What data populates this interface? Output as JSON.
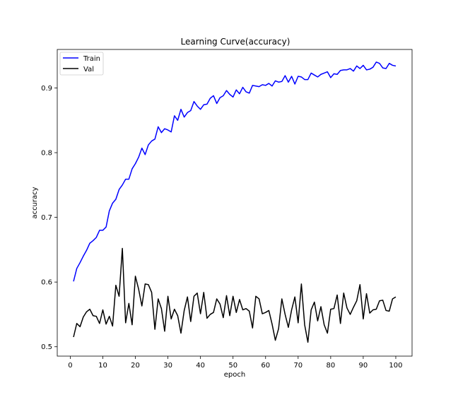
{
  "chart_data": {
    "type": "line",
    "title": "Learning Curve(accuracy)",
    "xlabel": "epoch",
    "ylabel": "accuracy",
    "xlim": [
      -4,
      105
    ],
    "ylim": [
      0.4855,
      0.9595
    ],
    "xticks": [
      0,
      10,
      20,
      30,
      40,
      50,
      60,
      70,
      80,
      90,
      100
    ],
    "yticks": [
      0.5,
      0.6,
      0.7,
      0.8,
      0.9
    ],
    "ytick_labels": [
      "0.5",
      "0.6",
      "0.7",
      "0.8",
      "0.9"
    ],
    "grid": false,
    "legend_position": "top-left",
    "series": [
      {
        "name": "Train",
        "color": "#0000ff",
        "x": [
          1,
          2,
          3,
          4,
          5,
          6,
          7,
          8,
          9,
          10,
          11,
          12,
          13,
          14,
          15,
          16,
          17,
          18,
          19,
          20,
          21,
          22,
          23,
          24,
          25,
          26,
          27,
          28,
          29,
          30,
          31,
          32,
          33,
          34,
          35,
          36,
          37,
          38,
          39,
          40,
          41,
          42,
          43,
          44,
          45,
          46,
          47,
          48,
          49,
          50,
          51,
          52,
          53,
          54,
          55,
          56,
          57,
          58,
          59,
          60,
          61,
          62,
          63,
          64,
          65,
          66,
          67,
          68,
          69,
          70,
          71,
          72,
          73,
          74,
          75,
          76,
          77,
          78,
          79,
          80,
          81,
          82,
          83,
          84,
          85,
          86,
          87,
          88,
          89,
          90,
          91,
          92,
          93,
          94,
          95,
          96,
          97,
          98,
          99,
          100
        ],
        "values": [
          0.601,
          0.621,
          0.63,
          0.64,
          0.649,
          0.66,
          0.664,
          0.669,
          0.68,
          0.68,
          0.685,
          0.71,
          0.722,
          0.728,
          0.743,
          0.75,
          0.759,
          0.759,
          0.775,
          0.783,
          0.793,
          0.807,
          0.797,
          0.812,
          0.818,
          0.821,
          0.84,
          0.831,
          0.837,
          0.835,
          0.832,
          0.857,
          0.85,
          0.867,
          0.855,
          0.862,
          0.865,
          0.879,
          0.872,
          0.867,
          0.874,
          0.875,
          0.884,
          0.888,
          0.876,
          0.885,
          0.888,
          0.896,
          0.89,
          0.886,
          0.897,
          0.891,
          0.901,
          0.894,
          0.892,
          0.904,
          0.903,
          0.902,
          0.905,
          0.904,
          0.907,
          0.903,
          0.911,
          0.909,
          0.91,
          0.919,
          0.909,
          0.918,
          0.906,
          0.918,
          0.917,
          0.913,
          0.913,
          0.923,
          0.92,
          0.917,
          0.921,
          0.923,
          0.925,
          0.916,
          0.922,
          0.921,
          0.927,
          0.928,
          0.928,
          0.93,
          0.926,
          0.934,
          0.93,
          0.935,
          0.928,
          0.929,
          0.932,
          0.94,
          0.938,
          0.931,
          0.93,
          0.938,
          0.935,
          0.934
        ]
      },
      {
        "name": "Val",
        "color": "#000000",
        "x": [
          1,
          2,
          3,
          4,
          5,
          6,
          7,
          8,
          9,
          10,
          11,
          12,
          13,
          14,
          15,
          16,
          17,
          18,
          19,
          20,
          21,
          22,
          23,
          24,
          25,
          26,
          27,
          28,
          29,
          30,
          31,
          32,
          33,
          34,
          35,
          36,
          37,
          38,
          39,
          40,
          41,
          42,
          43,
          44,
          45,
          46,
          47,
          48,
          49,
          50,
          51,
          52,
          53,
          54,
          55,
          56,
          57,
          58,
          59,
          60,
          61,
          62,
          63,
          64,
          65,
          66,
          67,
          68,
          69,
          70,
          71,
          72,
          73,
          74,
          75,
          76,
          77,
          78,
          79,
          80,
          81,
          82,
          83,
          84,
          85,
          86,
          87,
          88,
          89,
          90,
          91,
          92,
          93,
          94,
          95,
          96,
          97,
          98,
          99,
          100
        ],
        "values": [
          0.515,
          0.536,
          0.531,
          0.546,
          0.554,
          0.558,
          0.548,
          0.547,
          0.536,
          0.557,
          0.535,
          0.547,
          0.532,
          0.595,
          0.578,
          0.652,
          0.537,
          0.567,
          0.534,
          0.609,
          0.589,
          0.563,
          0.597,
          0.596,
          0.584,
          0.527,
          0.574,
          0.559,
          0.524,
          0.578,
          0.543,
          0.558,
          0.548,
          0.521,
          0.556,
          0.577,
          0.539,
          0.578,
          0.583,
          0.551,
          0.584,
          0.544,
          0.55,
          0.553,
          0.574,
          0.566,
          0.545,
          0.579,
          0.548,
          0.578,
          0.553,
          0.573,
          0.557,
          0.559,
          0.555,
          0.529,
          0.578,
          0.574,
          0.551,
          0.553,
          0.556,
          0.535,
          0.51,
          0.528,
          0.574,
          0.55,
          0.53,
          0.557,
          0.577,
          0.537,
          0.597,
          0.534,
          0.507,
          0.557,
          0.569,
          0.54,
          0.562,
          0.534,
          0.521,
          0.558,
          0.559,
          0.58,
          0.536,
          0.583,
          0.56,
          0.55,
          0.561,
          0.571,
          0.596,
          0.543,
          0.582,
          0.552,
          0.557,
          0.558,
          0.571,
          0.572,
          0.556,
          0.555,
          0.574,
          0.577
        ]
      }
    ]
  }
}
